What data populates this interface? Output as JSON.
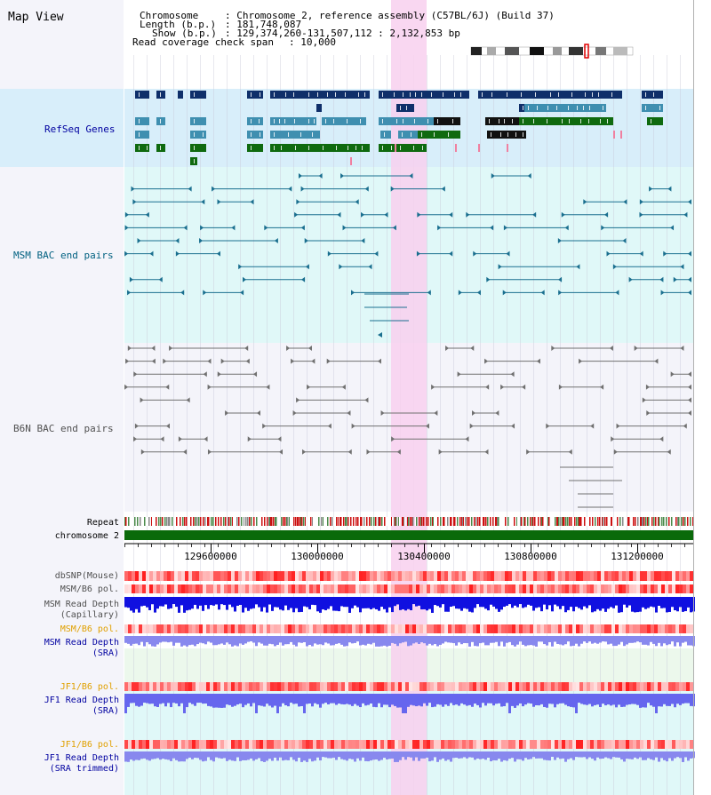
{
  "title": "Map View",
  "info": {
    "chromosome_key": "Chromosome",
    "chromosome_val": ": Chromosome 2, reference assembly (C57BL/6J) (Build 37)",
    "length_key": "Length (b.p.)",
    "length_val": ": 181,748,087",
    "show_key": "Show (b.p.)",
    "show_val": ": 129,374,260-131,507,112 : 2,132,853 bp",
    "coverage_key": "Read coverage check span",
    "coverage_val": ": 10,000"
  },
  "tracks": {
    "refseq": "RefSeq Genes",
    "msm_bac": "MSM BAC end pairs",
    "b6n_bac": "B6N BAC end pairs",
    "repeat": "Repeat",
    "chromosome": "chromosome 2",
    "dbsnp": "dbSNP(Mouse)",
    "msm_b6_pol": "MSM/B6 pol.",
    "msm_depth_cap_1": "MSM Read Depth",
    "msm_depth_cap_2": "(Capillary)",
    "msm_b6_pol_2": "MSM/B6 pol.",
    "msm_depth_sra_1": "MSM Read Depth",
    "msm_depth_sra_2": "(SRA)",
    "jf1_b6_pol": "JF1/B6 pol.",
    "jf1_depth_sra_1": "JF1 Read Depth",
    "jf1_depth_sra_2": "(SRA)",
    "jf1_b6_pol_2": "JF1/B6 pol.",
    "jf1_depth_trim_1": "JF1 Read Depth",
    "jf1_depth_trim_2": "(SRA trimmed)"
  },
  "axis": {
    "ticks": [
      "129600000",
      "130000000",
      "130400000",
      "130800000",
      "131200000"
    ]
  },
  "colors": {
    "highlight": "#f8d8f0",
    "refseq_bg": "#d8eefa",
    "msm_bg": "#e0f8f8",
    "b6n_bg": "#f4f4fa",
    "gene_dark": "#0f2f6a",
    "gene_mid": "#3f8fb0",
    "gene_green": "#0f6a0f",
    "msm_pair": "#1a6f8f",
    "b6n_pair": "#707070",
    "chrom_green": "#0a6a0a",
    "depth_blue": "#1010e0",
    "depth_lilac": "#8888ee",
    "label_navy": "#0000a0",
    "label_teal": "#006080",
    "label_gray": "#505050",
    "label_orange": "#e0a000"
  }
}
